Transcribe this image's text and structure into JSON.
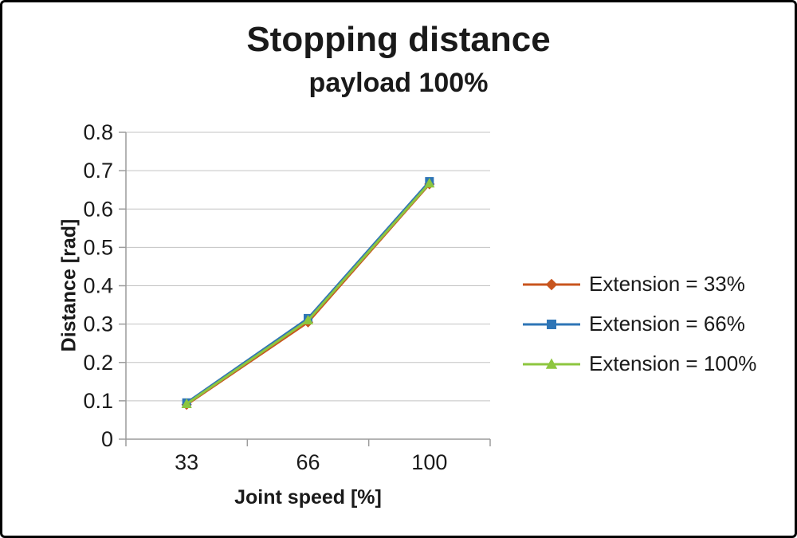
{
  "chart_data": {
    "type": "line",
    "title": "Stopping distance",
    "subtitle": "payload 100%",
    "xlabel": "Joint speed [%]",
    "ylabel": "Distance [rad]",
    "categories": [
      "33",
      "66",
      "100"
    ],
    "ylim": [
      0,
      0.8
    ],
    "yticks": [
      0,
      0.1,
      0.2,
      0.3,
      0.4,
      0.5,
      0.6,
      0.7,
      0.8
    ],
    "grid": true,
    "legend_position": "right",
    "colors": {
      "gridline": "#c3c3c3",
      "axis": "#9c9c9c",
      "text": "#1a1a1a"
    },
    "series": [
      {
        "name": "Extension = 33%",
        "marker": "diamond",
        "color": "#C8551E",
        "values": [
          0.09,
          0.305,
          0.665
        ]
      },
      {
        "name": "Extension = 66%",
        "marker": "square",
        "color": "#2E75B6",
        "values": [
          0.095,
          0.315,
          0.672
        ]
      },
      {
        "name": "Extension = 100%",
        "marker": "triangle",
        "color": "#8DC63F",
        "values": [
          0.092,
          0.31,
          0.667
        ]
      }
    ]
  }
}
